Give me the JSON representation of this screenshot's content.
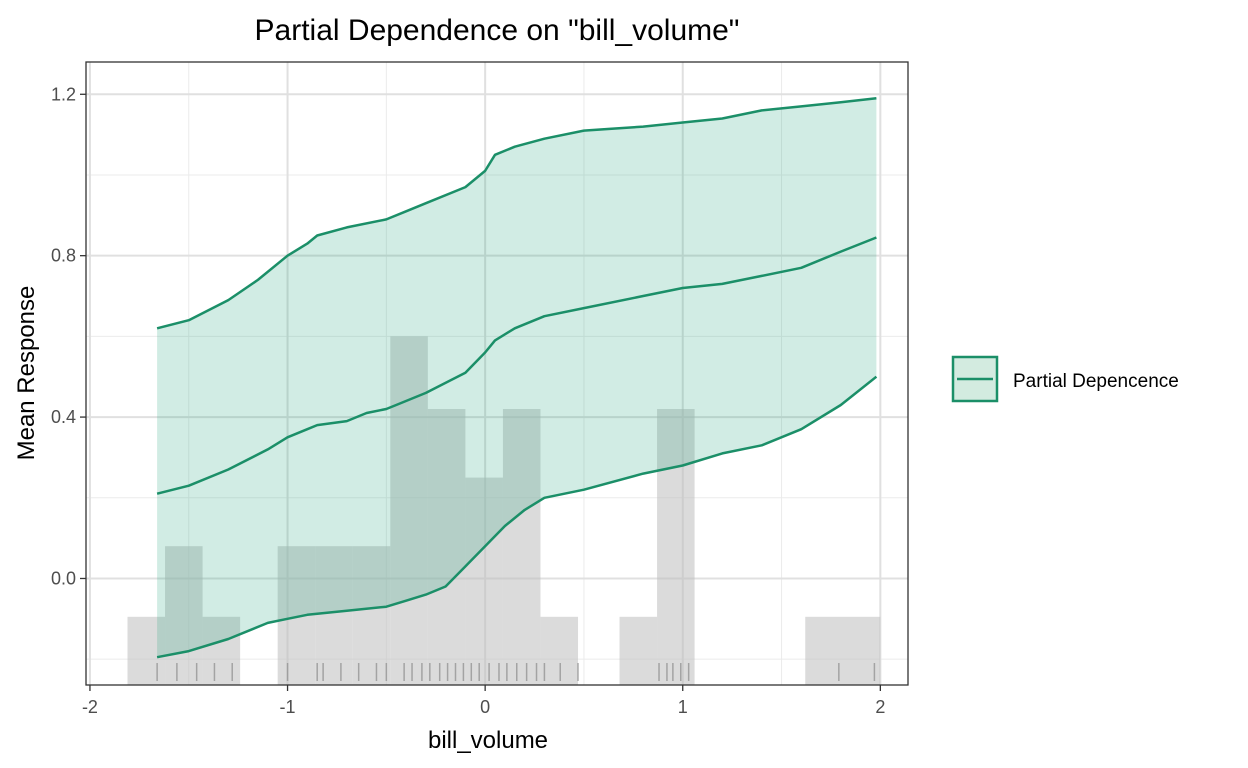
{
  "chart_data": {
    "type": "line",
    "title": "Partial Dependence on \"bill_volume\"",
    "xlabel": "bill_volume",
    "ylabel": "Mean Response",
    "xlim": [
      -2.02,
      2.14
    ],
    "ylim": [
      -0.264,
      1.28
    ],
    "x_ticks": [
      -2,
      -1,
      0,
      1,
      2
    ],
    "x_tick_labels": [
      "-2",
      "-1",
      "0",
      "1",
      "2"
    ],
    "y_ticks": [
      0.0,
      0.4,
      0.8,
      1.2
    ],
    "y_tick_labels": [
      "0.0",
      "0.4",
      "0.8",
      "1.2"
    ],
    "grid": true,
    "legend": {
      "position": "right",
      "entries": [
        "Partial Depencence"
      ]
    },
    "colors": {
      "line": "#1b8f68",
      "ribbon": "#1b9e77",
      "histogram": "#bdbdbd",
      "rug": "#8c8c8c"
    },
    "series": [
      {
        "name": "Partial Depencence",
        "role": "mean",
        "x": [
          -1.66,
          -1.5,
          -1.3,
          -1.1,
          -1.0,
          -0.9,
          -0.85,
          -0.7,
          -0.6,
          -0.5,
          -0.45,
          -0.3,
          -0.1,
          0.0,
          0.05,
          0.15,
          0.3,
          0.5,
          0.8,
          1.0,
          1.2,
          1.4,
          1.6,
          1.8,
          1.98
        ],
        "y": [
          0.21,
          0.23,
          0.27,
          0.32,
          0.35,
          0.37,
          0.38,
          0.39,
          0.41,
          0.42,
          0.43,
          0.46,
          0.51,
          0.56,
          0.59,
          0.62,
          0.65,
          0.67,
          0.7,
          0.72,
          0.73,
          0.75,
          0.77,
          0.81,
          0.845
        ]
      },
      {
        "name": "Partial Depencence",
        "role": "upper",
        "x": [
          -1.66,
          -1.5,
          -1.3,
          -1.15,
          -1.0,
          -0.9,
          -0.85,
          -0.7,
          -0.5,
          -0.4,
          -0.3,
          -0.1,
          0.0,
          0.05,
          0.15,
          0.3,
          0.5,
          0.8,
          1.0,
          1.2,
          1.4,
          1.6,
          1.8,
          1.98
        ],
        "y": [
          0.62,
          0.64,
          0.69,
          0.74,
          0.8,
          0.83,
          0.85,
          0.87,
          0.89,
          0.91,
          0.93,
          0.97,
          1.01,
          1.05,
          1.07,
          1.09,
          1.11,
          1.12,
          1.13,
          1.14,
          1.16,
          1.17,
          1.18,
          1.19
        ]
      },
      {
        "name": "Partial Depencence",
        "role": "lower",
        "x": [
          -1.66,
          -1.5,
          -1.3,
          -1.1,
          -1.0,
          -0.9,
          -0.8,
          -0.7,
          -0.5,
          -0.4,
          -0.3,
          -0.2,
          -0.1,
          0.0,
          0.1,
          0.2,
          0.3,
          0.5,
          0.8,
          1.0,
          1.2,
          1.4,
          1.6,
          1.8,
          1.98
        ],
        "y": [
          -0.195,
          -0.18,
          -0.15,
          -0.11,
          -0.1,
          -0.09,
          -0.085,
          -0.08,
          -0.07,
          -0.055,
          -0.04,
          -0.02,
          0.03,
          0.08,
          0.13,
          0.17,
          0.2,
          0.22,
          0.26,
          0.28,
          0.31,
          0.33,
          0.37,
          0.43,
          0.5
        ]
      }
    ],
    "histogram": {
      "baseline": -0.264,
      "bins": [
        {
          "x0": -1.81,
          "x1": -1.62,
          "top": -0.095
        },
        {
          "x0": -1.62,
          "x1": -1.43,
          "top": 0.08
        },
        {
          "x0": -1.43,
          "x1": -1.24,
          "top": -0.095
        },
        {
          "x0": -1.05,
          "x1": -0.86,
          "top": 0.08
        },
        {
          "x0": -0.86,
          "x1": -0.67,
          "top": 0.08
        },
        {
          "x0": -0.67,
          "x1": -0.48,
          "top": 0.08
        },
        {
          "x0": -0.48,
          "x1": -0.29,
          "top": 0.6
        },
        {
          "x0": -0.29,
          "x1": -0.1,
          "top": 0.42
        },
        {
          "x0": -0.1,
          "x1": 0.09,
          "top": 0.25
        },
        {
          "x0": 0.09,
          "x1": 0.28,
          "top": 0.42
        },
        {
          "x0": 0.28,
          "x1": 0.47,
          "top": -0.095
        },
        {
          "x0": 0.68,
          "x1": 0.87,
          "top": -0.095
        },
        {
          "x0": 0.87,
          "x1": 1.06,
          "top": 0.42
        },
        {
          "x0": 1.62,
          "x1": 2.0,
          "top": -0.095
        }
      ]
    },
    "rug": [
      -1.66,
      -1.56,
      -1.46,
      -1.37,
      -1.28,
      -1.0,
      -0.85,
      -0.82,
      -0.73,
      -0.64,
      -0.55,
      -0.5,
      -0.41,
      -0.37,
      -0.32,
      -0.28,
      -0.23,
      -0.19,
      -0.15,
      -0.11,
      -0.07,
      -0.03,
      0.02,
      0.07,
      0.11,
      0.16,
      0.21,
      0.26,
      0.3,
      0.38,
      0.47,
      0.88,
      0.92,
      0.95,
      0.99,
      1.03,
      1.79,
      1.97
    ]
  }
}
